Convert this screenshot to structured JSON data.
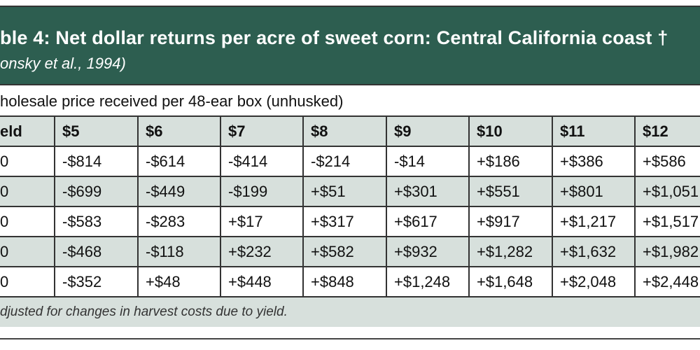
{
  "header": {
    "title": "ble 4: Net dollar returns per acre of sweet corn: Central California coast †",
    "citation": "onsky et al., 1994)",
    "banner_color": "#2d5e50"
  },
  "subtitle": "holesale price received per 48-ear box (unhusked)",
  "table": {
    "columns": [
      "eld",
      "$5",
      "$6",
      "$7",
      "$8",
      "$9",
      "$10",
      "$11",
      "$12"
    ],
    "rows": [
      [
        "0",
        "-$814",
        "-$614",
        "-$414",
        "-$214",
        "-$14",
        "+$186",
        "+$386",
        "+$586"
      ],
      [
        "0",
        "-$699",
        "-$449",
        "-$199",
        "+$51",
        "+$301",
        "+$551",
        "+$801",
        "+$1,051"
      ],
      [
        "0",
        "-$583",
        "-$283",
        "+$17",
        "+$317",
        "+$617",
        "+$917",
        "+$1,217",
        "+$1,517"
      ],
      [
        "0",
        "-$468",
        "-$118",
        "+$232",
        "+$582",
        "+$932",
        "+$1,282",
        "+$1,632",
        "+$1,982"
      ],
      [
        "0",
        "-$352",
        "+$48",
        "+$448",
        "+$848",
        "+$1,248",
        "+$1,648",
        "+$2,048",
        "+$2,448"
      ]
    ]
  },
  "footnote": "djusted for changes in harvest costs due to yield."
}
